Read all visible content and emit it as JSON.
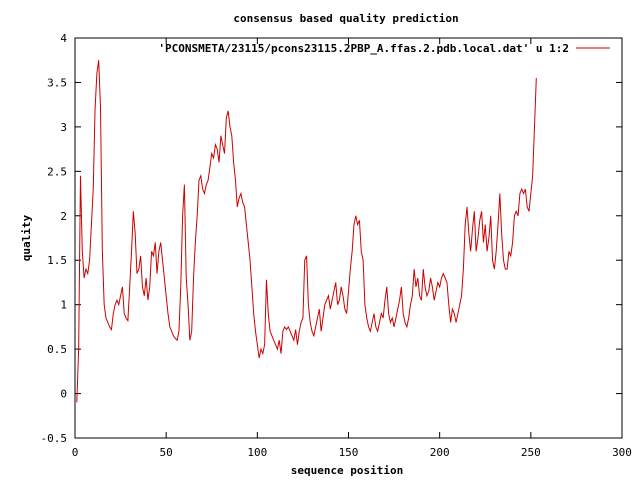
{
  "chart_data": {
    "type": "line",
    "title": "consensus based quality prediction",
    "xlabel": "sequence position",
    "ylabel": "quality",
    "xlim": [
      0,
      300
    ],
    "ylim": [
      -0.5,
      4
    ],
    "xticks": [
      "0",
      "50",
      "100",
      "150",
      "200",
      "250",
      "300"
    ],
    "yticks": [
      "-0.5",
      "0",
      "0.5",
      "1",
      "1.5",
      "2",
      "2.5",
      "3",
      "3.5",
      "4"
    ],
    "grid": false,
    "legend_position": "top-right",
    "series": [
      {
        "name": "'PCONSMETA/23115/pcons23115.2PBP_A.ffas.2.pdb.local.dat' u 1:2",
        "color": "#cc0000",
        "points": [
          [
            1,
            -0.1
          ],
          [
            2,
            0.5
          ],
          [
            3,
            2.45
          ],
          [
            4,
            1.6
          ],
          [
            5,
            1.3
          ],
          [
            6,
            1.4
          ],
          [
            7,
            1.35
          ],
          [
            8,
            1.5
          ],
          [
            9,
            1.9
          ],
          [
            10,
            2.3
          ],
          [
            11,
            3.2
          ],
          [
            12,
            3.6
          ],
          [
            13,
            3.75
          ],
          [
            14,
            3.2
          ],
          [
            15,
            1.6
          ],
          [
            16,
            1.0
          ],
          [
            17,
            0.85
          ],
          [
            18,
            0.8
          ],
          [
            19,
            0.75
          ],
          [
            20,
            0.72
          ],
          [
            21,
            0.9
          ],
          [
            22,
            1.0
          ],
          [
            23,
            1.05
          ],
          [
            24,
            1.0
          ],
          [
            25,
            1.1
          ],
          [
            26,
            1.2
          ],
          [
            27,
            0.9
          ],
          [
            28,
            0.85
          ],
          [
            29,
            0.82
          ],
          [
            30,
            1.2
          ],
          [
            31,
            1.6
          ],
          [
            32,
            2.05
          ],
          [
            33,
            1.8
          ],
          [
            34,
            1.35
          ],
          [
            35,
            1.4
          ],
          [
            36,
            1.55
          ],
          [
            37,
            1.2
          ],
          [
            38,
            1.1
          ],
          [
            39,
            1.3
          ],
          [
            40,
            1.05
          ],
          [
            41,
            1.2
          ],
          [
            42,
            1.6
          ],
          [
            43,
            1.55
          ],
          [
            44,
            1.7
          ],
          [
            45,
            1.35
          ],
          [
            46,
            1.6
          ],
          [
            47,
            1.7
          ],
          [
            48,
            1.5
          ],
          [
            49,
            1.3
          ],
          [
            50,
            1.1
          ],
          [
            51,
            0.9
          ],
          [
            52,
            0.75
          ],
          [
            53,
            0.7
          ],
          [
            54,
            0.65
          ],
          [
            55,
            0.62
          ],
          [
            56,
            0.6
          ],
          [
            57,
            0.7
          ],
          [
            58,
            1.2
          ],
          [
            59,
            2.0
          ],
          [
            60,
            2.35
          ],
          [
            61,
            1.3
          ],
          [
            62,
            1.0
          ],
          [
            63,
            0.6
          ],
          [
            64,
            0.7
          ],
          [
            65,
            1.3
          ],
          [
            66,
            1.7
          ],
          [
            67,
            2.0
          ],
          [
            68,
            2.4
          ],
          [
            69,
            2.45
          ],
          [
            70,
            2.3
          ],
          [
            71,
            2.25
          ],
          [
            72,
            2.35
          ],
          [
            73,
            2.4
          ],
          [
            74,
            2.55
          ],
          [
            75,
            2.7
          ],
          [
            76,
            2.65
          ],
          [
            77,
            2.8
          ],
          [
            78,
            2.75
          ],
          [
            79,
            2.6
          ],
          [
            80,
            2.9
          ],
          [
            81,
            2.8
          ],
          [
            82,
            2.7
          ],
          [
            83,
            3.1
          ],
          [
            84,
            3.18
          ],
          [
            85,
            3.0
          ],
          [
            86,
            2.9
          ],
          [
            87,
            2.6
          ],
          [
            88,
            2.4
          ],
          [
            89,
            2.1
          ],
          [
            90,
            2.2
          ],
          [
            91,
            2.25
          ],
          [
            92,
            2.15
          ],
          [
            93,
            2.1
          ],
          [
            94,
            1.9
          ],
          [
            95,
            1.7
          ],
          [
            96,
            1.5
          ],
          [
            97,
            1.2
          ],
          [
            98,
            0.9
          ],
          [
            99,
            0.7
          ],
          [
            100,
            0.55
          ],
          [
            101,
            0.4
          ],
          [
            102,
            0.5
          ],
          [
            103,
            0.45
          ],
          [
            104,
            0.55
          ],
          [
            105,
            1.28
          ],
          [
            106,
            0.9
          ],
          [
            107,
            0.7
          ],
          [
            108,
            0.65
          ],
          [
            109,
            0.6
          ],
          [
            110,
            0.55
          ],
          [
            111,
            0.5
          ],
          [
            112,
            0.6
          ],
          [
            113,
            0.45
          ],
          [
            114,
            0.7
          ],
          [
            115,
            0.75
          ],
          [
            116,
            0.72
          ],
          [
            117,
            0.75
          ],
          [
            118,
            0.7
          ],
          [
            119,
            0.65
          ],
          [
            120,
            0.6
          ],
          [
            121,
            0.72
          ],
          [
            122,
            0.55
          ],
          [
            123,
            0.7
          ],
          [
            124,
            0.8
          ],
          [
            125,
            0.85
          ],
          [
            126,
            1.5
          ],
          [
            127,
            1.55
          ],
          [
            128,
            1.0
          ],
          [
            129,
            0.8
          ],
          [
            130,
            0.7
          ],
          [
            131,
            0.65
          ],
          [
            132,
            0.75
          ],
          [
            133,
            0.85
          ],
          [
            134,
            0.95
          ],
          [
            135,
            0.7
          ],
          [
            136,
            0.85
          ],
          [
            137,
            1.0
          ],
          [
            138,
            1.05
          ],
          [
            139,
            1.1
          ],
          [
            140,
            0.95
          ],
          [
            141,
            1.05
          ],
          [
            142,
            1.15
          ],
          [
            143,
            1.25
          ],
          [
            144,
            1.0
          ],
          [
            145,
            1.05
          ],
          [
            146,
            1.2
          ],
          [
            147,
            1.1
          ],
          [
            148,
            0.95
          ],
          [
            149,
            0.9
          ],
          [
            150,
            1.15
          ],
          [
            151,
            1.4
          ],
          [
            152,
            1.6
          ],
          [
            153,
            1.9
          ],
          [
            154,
            2.0
          ],
          [
            155,
            1.9
          ],
          [
            156,
            1.95
          ],
          [
            157,
            1.6
          ],
          [
            158,
            1.5
          ],
          [
            159,
            1.0
          ],
          [
            160,
            0.85
          ],
          [
            161,
            0.75
          ],
          [
            162,
            0.7
          ],
          [
            163,
            0.8
          ],
          [
            164,
            0.9
          ],
          [
            165,
            0.75
          ],
          [
            166,
            0.7
          ],
          [
            167,
            0.8
          ],
          [
            168,
            0.9
          ],
          [
            169,
            0.85
          ],
          [
            170,
            1.05
          ],
          [
            171,
            1.2
          ],
          [
            172,
            0.9
          ],
          [
            173,
            0.8
          ],
          [
            174,
            0.85
          ],
          [
            175,
            0.75
          ],
          [
            176,
            0.85
          ],
          [
            177,
            0.95
          ],
          [
            178,
            1.05
          ],
          [
            179,
            1.2
          ],
          [
            180,
            0.9
          ],
          [
            181,
            0.8
          ],
          [
            182,
            0.75
          ],
          [
            183,
            0.85
          ],
          [
            184,
            1.0
          ],
          [
            185,
            1.1
          ],
          [
            186,
            1.4
          ],
          [
            187,
            1.2
          ],
          [
            188,
            1.3
          ],
          [
            189,
            1.1
          ],
          [
            190,
            1.05
          ],
          [
            191,
            1.4
          ],
          [
            192,
            1.2
          ],
          [
            193,
            1.1
          ],
          [
            194,
            1.15
          ],
          [
            195,
            1.3
          ],
          [
            196,
            1.2
          ],
          [
            197,
            1.05
          ],
          [
            198,
            1.15
          ],
          [
            199,
            1.25
          ],
          [
            200,
            1.2
          ],
          [
            201,
            1.3
          ],
          [
            202,
            1.35
          ],
          [
            203,
            1.3
          ],
          [
            204,
            1.25
          ],
          [
            205,
            1.0
          ],
          [
            206,
            0.8
          ],
          [
            207,
            0.95
          ],
          [
            208,
            0.9
          ],
          [
            209,
            0.8
          ],
          [
            210,
            0.9
          ],
          [
            211,
            1.0
          ],
          [
            212,
            1.1
          ],
          [
            213,
            1.4
          ],
          [
            214,
            1.9
          ],
          [
            215,
            2.1
          ],
          [
            216,
            1.8
          ],
          [
            217,
            1.6
          ],
          [
            218,
            1.85
          ],
          [
            219,
            2.05
          ],
          [
            220,
            1.6
          ],
          [
            221,
            1.75
          ],
          [
            222,
            1.95
          ],
          [
            223,
            2.05
          ],
          [
            224,
            1.7
          ],
          [
            225,
            1.9
          ],
          [
            226,
            1.6
          ],
          [
            227,
            1.75
          ],
          [
            228,
            2.0
          ],
          [
            229,
            1.5
          ],
          [
            230,
            1.4
          ],
          [
            231,
            1.6
          ],
          [
            232,
            1.9
          ],
          [
            233,
            2.25
          ],
          [
            234,
            1.8
          ],
          [
            235,
            1.5
          ],
          [
            236,
            1.4
          ],
          [
            237,
            1.4
          ],
          [
            238,
            1.6
          ],
          [
            239,
            1.55
          ],
          [
            240,
            1.7
          ],
          [
            241,
            2.0
          ],
          [
            242,
            2.05
          ],
          [
            243,
            2.0
          ],
          [
            244,
            2.25
          ],
          [
            245,
            2.3
          ],
          [
            246,
            2.25
          ],
          [
            247,
            2.3
          ],
          [
            248,
            2.1
          ],
          [
            249,
            2.05
          ],
          [
            250,
            2.25
          ],
          [
            251,
            2.45
          ],
          [
            252,
            3.0
          ],
          [
            253,
            3.55
          ]
        ]
      }
    ]
  }
}
